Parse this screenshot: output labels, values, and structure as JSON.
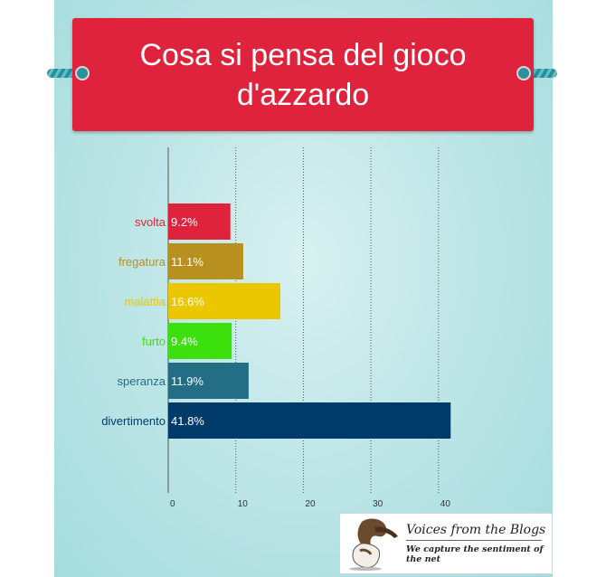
{
  "chart_data": {
    "type": "bar",
    "orientation": "horizontal",
    "title": "Cosa si pensa del gioco d'azzardo",
    "categories": [
      "svolta",
      "fregatura",
      "malattia",
      "furto",
      "speranza",
      "divertimento"
    ],
    "values": [
      9.2,
      11.1,
      16.6,
      9.4,
      11.9,
      41.8
    ],
    "data_labels": [
      "9.2%",
      "11.1%",
      "16.6%",
      "9.4%",
      "11.9%",
      "41.8%"
    ],
    "colors": [
      "#e0233c",
      "#b8901f",
      "#eac700",
      "#3ce00d",
      "#236e85",
      "#003b6a"
    ],
    "xlim": [
      0,
      42
    ],
    "xticks": [
      0,
      10,
      20,
      30,
      40
    ],
    "grid": "vertical dotted",
    "legend": "none"
  },
  "logo": {
    "line1": "Voices from the Blogs",
    "line2": "We capture the sentiment of the net",
    "icon": "basset-hound-logo"
  }
}
